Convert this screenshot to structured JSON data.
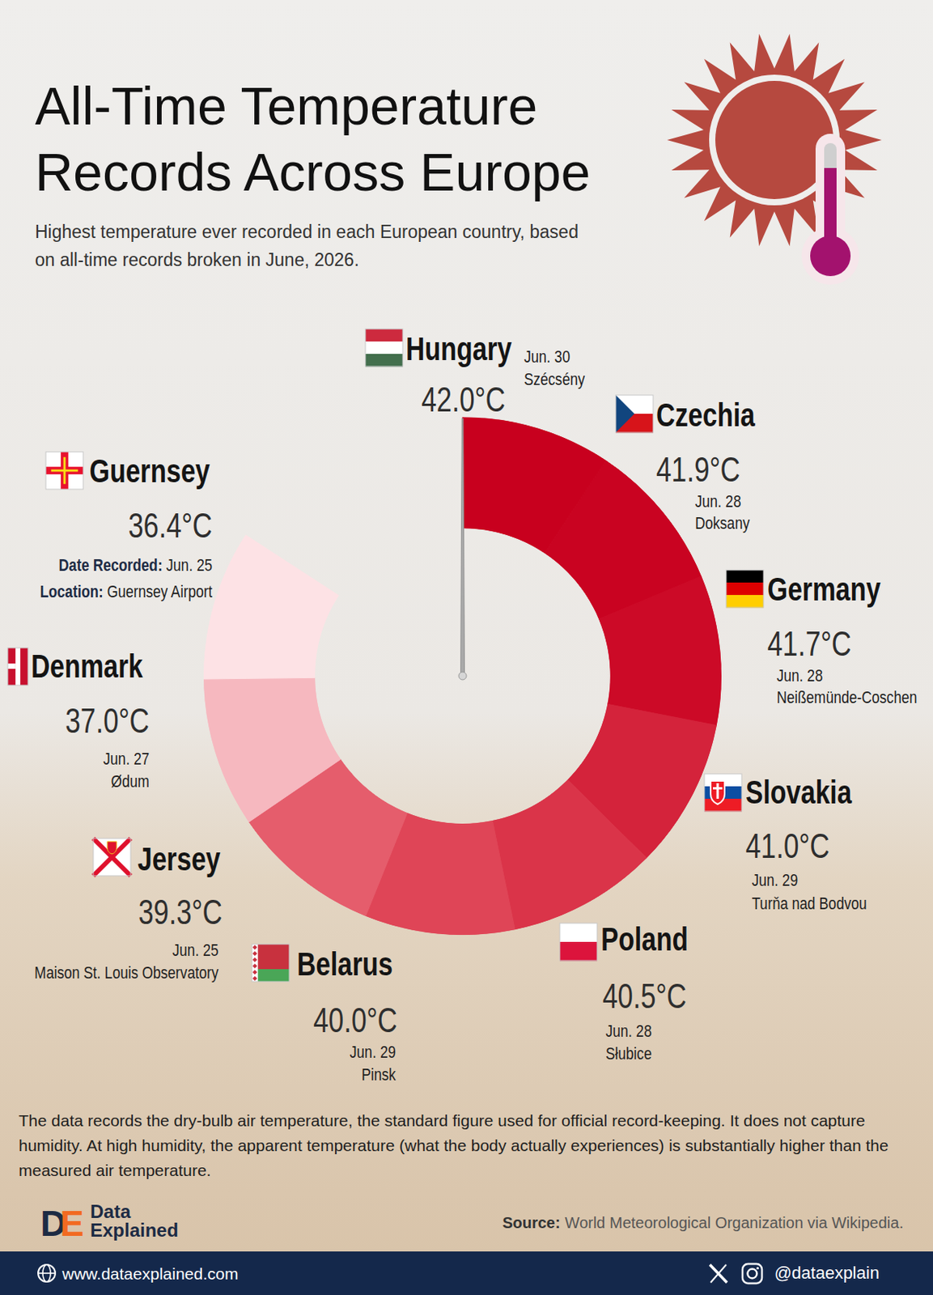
{
  "chart_data": {
    "type": "radial_bar",
    "title": "All-Time Temperature Records Across Europe",
    "subtitle": "Highest temperature ever recorded in each European country, based on all-time records broken in June, 2026.",
    "categories": [
      "Hungary",
      "Czechia",
      "Germany",
      "Slovakia",
      "Poland",
      "Belarus",
      "Jersey",
      "Denmark",
      "Guernsey"
    ],
    "values": [
      42.0,
      41.9,
      41.7,
      41.0,
      40.5,
      40.0,
      39.3,
      37.0,
      36.4
    ],
    "value_labels": [
      "42.0°C",
      "41.9°C",
      "41.7°C",
      "41.0°C",
      "40.5°C",
      "40.0°C",
      "39.3°C",
      "37.0°C",
      "36.4°C"
    ],
    "dates": [
      "Jun. 30",
      "Jun. 28",
      "Jun. 28",
      "Jun. 29",
      "Jun. 28",
      "Jun. 29",
      "Jun. 25",
      "Jun. 27",
      "Jun. 25"
    ],
    "locations": [
      "Szécsény",
      "Doksany",
      "Neißemünde-Coschen",
      "Turňa nad Bodvou",
      "Słubice",
      "Pinsk",
      "Maison St. Louis Observatory",
      "Ødum",
      "Guernsey Airport"
    ],
    "field_labels": {
      "category": "Guernsey",
      "date": "Date Recorded:",
      "location": "Location:"
    },
    "data_labels": true,
    "tick_labels": false,
    "note": "The data records the dry-bulb air temperature, the standard figure used for official record-keeping. It does not capture humidity. At high humidity, the apparent temperature (what the body actually experiences) is substantially higher than the measured air temperature.",
    "source_label": "Source:",
    "source": "World Meteorological Organization via Wikipedia.",
    "brand_mark": "DE",
    "brand": "Data Explained",
    "website": "www.dataexplained.com",
    "handle": "@dataexplain"
  }
}
